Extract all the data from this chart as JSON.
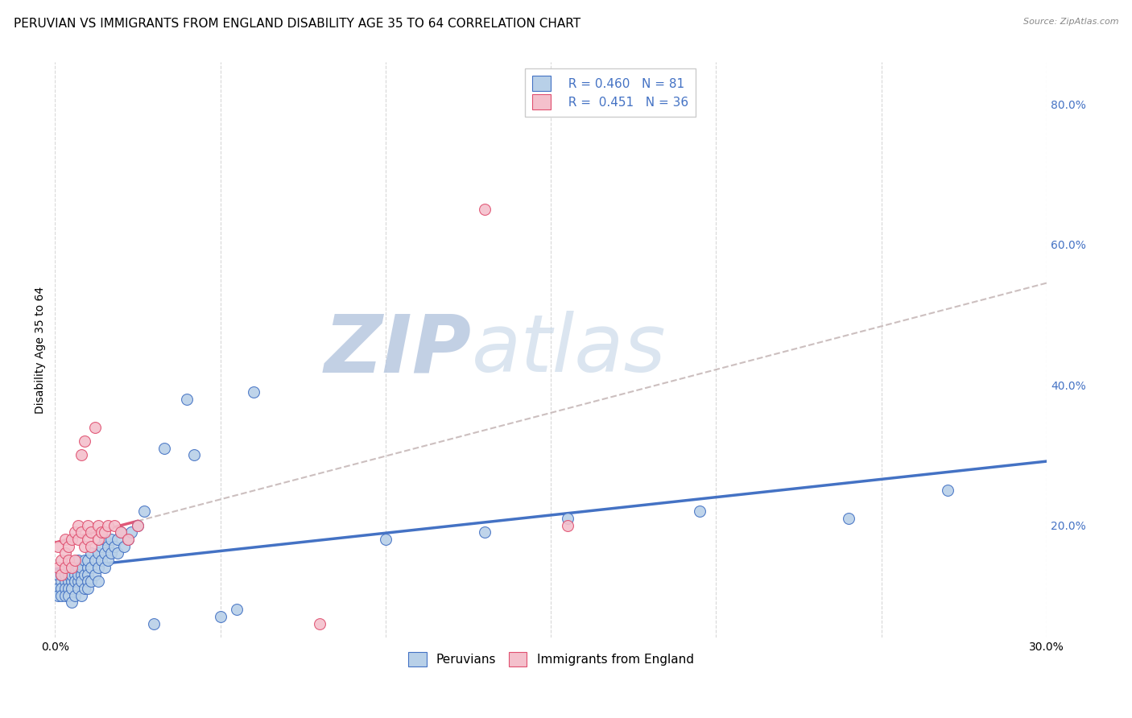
{
  "title": "PERUVIAN VS IMMIGRANTS FROM ENGLAND DISABILITY AGE 35 TO 64 CORRELATION CHART",
  "source": "Source: ZipAtlas.com",
  "ylabel_left": "Disability Age 35 to 64",
  "xlim": [
    0.0,
    0.3
  ],
  "ylim": [
    0.04,
    0.86
  ],
  "xtick_positions": [
    0.0,
    0.05,
    0.1,
    0.15,
    0.2,
    0.25,
    0.3
  ],
  "xtick_labels": [
    "0.0%",
    "",
    "",
    "",
    "",
    "",
    "30.0%"
  ],
  "ytick_positions": [
    0.2,
    0.4,
    0.6,
    0.8
  ],
  "ytick_labels": [
    "20.0%",
    "40.0%",
    "60.0%",
    "80.0%"
  ],
  "color_peruvian_fill": "#b8d0e8",
  "color_peruvian_edge": "#4472c4",
  "color_england_fill": "#f4c0cc",
  "color_england_edge": "#e05070",
  "color_line_peruvian": "#4472c4",
  "color_line_england": "#e05878",
  "color_dash": "#c0b0b0",
  "background_color": "#ffffff",
  "grid_color": "#d8d8d8",
  "title_fontsize": 11,
  "axis_label_fontsize": 10,
  "tick_fontsize": 10,
  "legend_fontsize": 11,
  "watermark_color": "#ccd8ec",
  "peruvian_x": [
    0.001,
    0.001,
    0.001,
    0.002,
    0.002,
    0.002,
    0.002,
    0.003,
    0.003,
    0.003,
    0.003,
    0.003,
    0.004,
    0.004,
    0.004,
    0.004,
    0.005,
    0.005,
    0.005,
    0.005,
    0.005,
    0.006,
    0.006,
    0.006,
    0.006,
    0.007,
    0.007,
    0.007,
    0.007,
    0.007,
    0.008,
    0.008,
    0.008,
    0.008,
    0.009,
    0.009,
    0.009,
    0.01,
    0.01,
    0.01,
    0.01,
    0.01,
    0.011,
    0.011,
    0.011,
    0.012,
    0.012,
    0.013,
    0.013,
    0.013,
    0.014,
    0.014,
    0.015,
    0.015,
    0.015,
    0.016,
    0.016,
    0.017,
    0.017,
    0.018,
    0.019,
    0.019,
    0.02,
    0.021,
    0.022,
    0.023,
    0.025,
    0.027,
    0.03,
    0.033,
    0.04,
    0.042,
    0.05,
    0.055,
    0.06,
    0.1,
    0.13,
    0.155,
    0.195,
    0.24,
    0.27
  ],
  "peruvian_y": [
    0.13,
    0.11,
    0.1,
    0.12,
    0.13,
    0.11,
    0.1,
    0.12,
    0.11,
    0.1,
    0.13,
    0.14,
    0.12,
    0.11,
    0.13,
    0.1,
    0.14,
    0.12,
    0.11,
    0.13,
    0.09,
    0.13,
    0.12,
    0.14,
    0.1,
    0.14,
    0.12,
    0.13,
    0.11,
    0.15,
    0.13,
    0.14,
    0.12,
    0.1,
    0.15,
    0.13,
    0.11,
    0.14,
    0.13,
    0.12,
    0.15,
    0.11,
    0.16,
    0.14,
    0.12,
    0.15,
    0.13,
    0.16,
    0.14,
    0.12,
    0.17,
    0.15,
    0.18,
    0.16,
    0.14,
    0.17,
    0.15,
    0.18,
    0.16,
    0.17,
    0.18,
    0.16,
    0.19,
    0.17,
    0.18,
    0.19,
    0.2,
    0.22,
    0.06,
    0.31,
    0.38,
    0.3,
    0.07,
    0.08,
    0.39,
    0.18,
    0.19,
    0.21,
    0.22,
    0.21,
    0.25
  ],
  "england_x": [
    0.001,
    0.001,
    0.002,
    0.002,
    0.003,
    0.003,
    0.003,
    0.004,
    0.004,
    0.005,
    0.005,
    0.006,
    0.006,
    0.007,
    0.007,
    0.008,
    0.008,
    0.009,
    0.009,
    0.01,
    0.01,
    0.011,
    0.011,
    0.012,
    0.013,
    0.013,
    0.014,
    0.015,
    0.016,
    0.018,
    0.02,
    0.022,
    0.025,
    0.08,
    0.13,
    0.155
  ],
  "england_y": [
    0.17,
    0.14,
    0.15,
    0.13,
    0.18,
    0.14,
    0.16,
    0.17,
    0.15,
    0.18,
    0.14,
    0.19,
    0.15,
    0.2,
    0.18,
    0.19,
    0.3,
    0.17,
    0.32,
    0.2,
    0.18,
    0.19,
    0.17,
    0.34,
    0.2,
    0.18,
    0.19,
    0.19,
    0.2,
    0.2,
    0.19,
    0.18,
    0.2,
    0.06,
    0.65,
    0.2
  ]
}
